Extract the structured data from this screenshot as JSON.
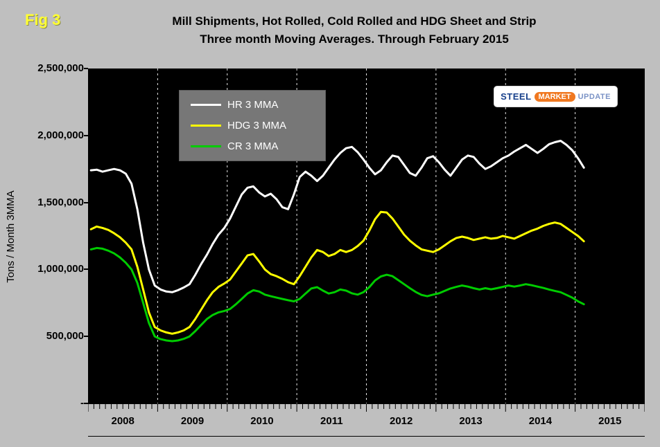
{
  "figure": {
    "fig_label": "Fig 3",
    "title_line1": "Mill Shipments, Hot Rolled, Cold Rolled and HDG Sheet and Strip",
    "title_line2": "Three month Moving Averages. Through February 2015"
  },
  "logo": {
    "steel": "STEEL",
    "market": "MARKET",
    "update": "UPDATE"
  },
  "chart_data": {
    "type": "line",
    "title": "Mill Shipments, Hot Rolled, Cold Rolled and HDG Sheet and Strip — Three month Moving Averages. Through February 2015",
    "ylabel": "Tons / Month 3MMA",
    "ylim": [
      0,
      2500000
    ],
    "ytick_step": 500000,
    "ytick_labels": [
      "-",
      "500,000",
      "1,000,000",
      "1,500,000",
      "2,000,000",
      "2,500,000"
    ],
    "x_years": [
      "2008",
      "2009",
      "2010",
      "2011",
      "2012",
      "2013",
      "2014",
      "2015"
    ],
    "x_domain_months": 96,
    "x_start": "2008-01",
    "x_end_data": "2015-02",
    "grid": "vertical dashed white lines at year boundaries",
    "legend_position": "top-left inside plot",
    "plot_background": "#000000",
    "page_background": "#bfbfbf",
    "series": [
      {
        "name": "HR 3 MMA",
        "color": "#ffffff",
        "values": [
          1740000,
          1745000,
          1730000,
          1740000,
          1750000,
          1740000,
          1715000,
          1640000,
          1450000,
          1200000,
          1000000,
          880000,
          850000,
          835000,
          830000,
          845000,
          865000,
          890000,
          960000,
          1040000,
          1110000,
          1190000,
          1260000,
          1310000,
          1380000,
          1470000,
          1560000,
          1610000,
          1620000,
          1575000,
          1545000,
          1565000,
          1525000,
          1465000,
          1450000,
          1560000,
          1690000,
          1730000,
          1700000,
          1660000,
          1700000,
          1760000,
          1820000,
          1870000,
          1905000,
          1915000,
          1875000,
          1820000,
          1760000,
          1710000,
          1740000,
          1800000,
          1850000,
          1840000,
          1780000,
          1720000,
          1700000,
          1760000,
          1830000,
          1845000,
          1800000,
          1745000,
          1700000,
          1760000,
          1820000,
          1850000,
          1840000,
          1790000,
          1750000,
          1770000,
          1800000,
          1830000,
          1850000,
          1880000,
          1905000,
          1930000,
          1900000,
          1870000,
          1900000,
          1935000,
          1950000,
          1960000,
          1930000,
          1890000,
          1830000,
          1760000
        ]
      },
      {
        "name": "HDG 3 MMA",
        "color": "#ffff00",
        "values": [
          1300000,
          1320000,
          1310000,
          1295000,
          1270000,
          1240000,
          1200000,
          1150000,
          1020000,
          850000,
          680000,
          570000,
          545000,
          530000,
          520000,
          530000,
          545000,
          570000,
          630000,
          700000,
          770000,
          830000,
          870000,
          895000,
          925000,
          985000,
          1045000,
          1105000,
          1115000,
          1060000,
          1000000,
          965000,
          950000,
          930000,
          905000,
          890000,
          950000,
          1020000,
          1090000,
          1145000,
          1130000,
          1100000,
          1115000,
          1145000,
          1130000,
          1145000,
          1175000,
          1215000,
          1290000,
          1375000,
          1430000,
          1425000,
          1380000,
          1320000,
          1260000,
          1215000,
          1180000,
          1150000,
          1140000,
          1130000,
          1150000,
          1180000,
          1210000,
          1235000,
          1245000,
          1235000,
          1220000,
          1230000,
          1240000,
          1230000,
          1235000,
          1250000,
          1240000,
          1230000,
          1250000,
          1270000,
          1290000,
          1305000,
          1325000,
          1340000,
          1350000,
          1340000,
          1310000,
          1280000,
          1250000,
          1210000
        ]
      },
      {
        "name": "CR 3 MMA",
        "color": "#00cc00",
        "values": [
          1150000,
          1160000,
          1155000,
          1140000,
          1120000,
          1090000,
          1050000,
          1000000,
          900000,
          750000,
          600000,
          500000,
          480000,
          470000,
          465000,
          470000,
          482000,
          500000,
          540000,
          585000,
          630000,
          660000,
          680000,
          690000,
          705000,
          740000,
          780000,
          820000,
          845000,
          835000,
          812000,
          800000,
          790000,
          780000,
          770000,
          762000,
          780000,
          820000,
          858000,
          868000,
          842000,
          820000,
          830000,
          850000,
          842000,
          822000,
          812000,
          830000,
          868000,
          918000,
          948000,
          960000,
          950000,
          920000,
          890000,
          860000,
          832000,
          810000,
          800000,
          812000,
          822000,
          840000,
          858000,
          870000,
          880000,
          872000,
          860000,
          850000,
          860000,
          852000,
          860000,
          870000,
          880000,
          872000,
          880000,
          890000,
          882000,
          872000,
          862000,
          850000,
          840000,
          830000,
          810000,
          790000,
          762000,
          740000
        ]
      }
    ]
  }
}
